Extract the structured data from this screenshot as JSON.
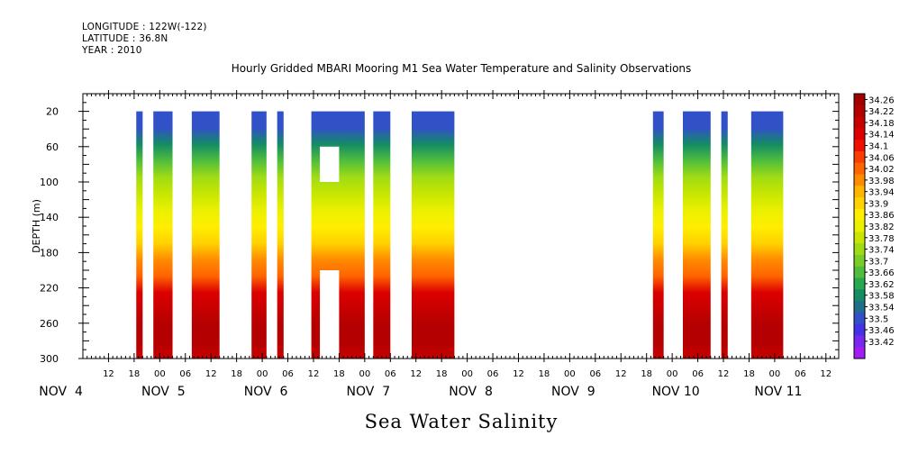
{
  "header": {
    "longitude": "LONGITUDE : 122W(-122)",
    "latitude": "LATITUDE : 36.8N",
    "year": "YEAR : 2010",
    "title": "Hourly Gridded MBARI Mooring M1 Sea Water Temperature and Salinity Observations"
  },
  "chart_data": {
    "type": "heatmap",
    "title": "Hourly Gridded MBARI Mooring M1 Sea Water Temperature and Salinity Observations",
    "xlabel": "Sea Water Salinity",
    "ylabel": "DEPTH (m)",
    "x_unit": "hours since NOV 4 00:00 (2010)",
    "xlim": [
      6,
      183
    ],
    "ylim": [
      300,
      0
    ],
    "y_ticks": [
      20,
      60,
      100,
      140,
      180,
      220,
      260,
      300
    ],
    "x_hour_ticks": [
      "12",
      "18",
      "00",
      "06",
      "12",
      "18",
      "00",
      "06",
      "12",
      "18",
      "00",
      "06",
      "12",
      "18",
      "00",
      "06",
      "12",
      "18",
      "00",
      "06",
      "12",
      "18",
      "00",
      "06",
      "12",
      "18",
      "00",
      "06",
      "12",
      "18",
      "00",
      "06"
    ],
    "x_day_labels": [
      {
        "label": "NOV  4",
        "hour": 0
      },
      {
        "label": "NOV  5",
        "hour": 24
      },
      {
        "label": "NOV  6",
        "hour": 48
      },
      {
        "label": "NOV  7",
        "hour": 72
      },
      {
        "label": "NOV  8",
        "hour": 96
      },
      {
        "label": "NOV  9",
        "hour": 120
      },
      {
        "label": "NOV 10",
        "hour": 144
      },
      {
        "label": "NOV 11",
        "hour": 168
      }
    ],
    "data_columns_hours": [
      {
        "start": 18.5,
        "end": 20
      },
      {
        "start": 22.5,
        "end": 27
      },
      {
        "start": 31.5,
        "end": 38
      },
      {
        "start": 45.5,
        "end": 49
      },
      {
        "start": 51.5,
        "end": 53
      },
      {
        "start": 59.5,
        "end": 72
      },
      {
        "start": 74,
        "end": 78
      },
      {
        "start": 83,
        "end": 93
      },
      {
        "start": 139.5,
        "end": 142
      },
      {
        "start": 146.5,
        "end": 153
      },
      {
        "start": 155.5,
        "end": 157
      },
      {
        "start": 162.5,
        "end": 170
      }
    ],
    "missing_boxes": [
      {
        "start": 61.5,
        "end": 66,
        "depth_top": 60,
        "depth_bottom": 100
      },
      {
        "start": 61.5,
        "end": 66,
        "depth_top": 200,
        "depth_bottom": 300
      }
    ],
    "profile_depths": [
      20,
      40,
      60,
      80,
      100,
      120,
      140,
      160,
      180,
      200,
      220,
      240,
      260,
      280,
      300
    ],
    "profile_salinity": [
      33.56,
      33.62,
      33.69,
      33.75,
      33.8,
      33.84,
      33.88,
      33.93,
      33.98,
      34.04,
      34.12,
      34.18,
      34.22,
      34.2,
      34.16
    ],
    "colorbar_labels": [
      "34.26",
      "34.22",
      "34.18",
      "34.14",
      "34.1",
      "34.06",
      "34.02",
      "33.98",
      "33.94",
      "33.9",
      "33.86",
      "33.82",
      "33.78",
      "33.74",
      "33.7",
      "33.66",
      "33.62",
      "33.58",
      "33.54",
      "33.5",
      "33.46",
      "33.42"
    ],
    "colorbar_colors": [
      "#a00000",
      "#b40000",
      "#c80000",
      "#dc0000",
      "#f01000",
      "#fa3c00",
      "#ff6400",
      "#ff8c00",
      "#ffb400",
      "#ffd200",
      "#ffee00",
      "#eaf000",
      "#c8e600",
      "#a0dc14",
      "#78cd28",
      "#50be3c",
      "#28a950",
      "#148c64",
      "#1e6e8c",
      "#3250c8",
      "#4632e6",
      "#7828f0",
      "#a01ef5"
    ],
    "colors": {
      "background": "#ffffff",
      "axis": "#000000"
    }
  }
}
